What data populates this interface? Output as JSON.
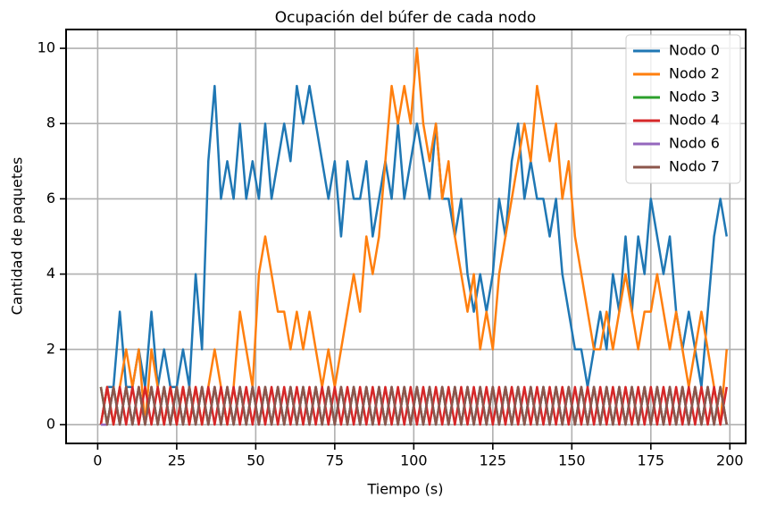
{
  "chart_data": {
    "type": "line",
    "title": "Ocupación del búfer de cada nodo",
    "x_label": "Tiempo (s)",
    "y_label": "Cantidad de paquetes",
    "xlim": [
      -10,
      205
    ],
    "xticks": [
      0,
      25,
      50,
      75,
      100,
      125,
      150,
      175,
      200
    ],
    "ylim": [
      -0.5,
      10.5
    ],
    "yticks": [
      0,
      2,
      4,
      6,
      8,
      10
    ],
    "grid": true,
    "legend": "upper right",
    "x": [
      1,
      3,
      5,
      7,
      9,
      11,
      13,
      15,
      17,
      19,
      21,
      23,
      25,
      27,
      29,
      31,
      33,
      35,
      37,
      39,
      41,
      43,
      45,
      47,
      49,
      51,
      53,
      55,
      57,
      59,
      61,
      63,
      65,
      67,
      69,
      71,
      73,
      75,
      77,
      79,
      81,
      83,
      85,
      87,
      89,
      91,
      93,
      95,
      97,
      99,
      101,
      103,
      105,
      107,
      109,
      111,
      113,
      115,
      117,
      119,
      121,
      123,
      125,
      127,
      129,
      131,
      133,
      135,
      137,
      139,
      141,
      143,
      145,
      147,
      149,
      151,
      153,
      155,
      157,
      159,
      161,
      163,
      165,
      167,
      169,
      171,
      173,
      175,
      177,
      179,
      181,
      183,
      185,
      187,
      189,
      191,
      193,
      195,
      197,
      199
    ],
    "series": [
      {
        "name": "Nodo 0",
        "color": "#1f77b4",
        "values": [
          0,
          1,
          1,
          3,
          1,
          1,
          2,
          1,
          3,
          1,
          2,
          1,
          1,
          2,
          1,
          4,
          2,
          7,
          9,
          6,
          7,
          6,
          8,
          6,
          7,
          6,
          8,
          6,
          7,
          8,
          7,
          9,
          8,
          9,
          8,
          7,
          6,
          7,
          5,
          7,
          6,
          6,
          7,
          5,
          6,
          7,
          6,
          8,
          6,
          7,
          8,
          7,
          6,
          8,
          6,
          6,
          5,
          6,
          4,
          3,
          4,
          3,
          4,
          6,
          5,
          7,
          8,
          6,
          7,
          6,
          6,
          5,
          6,
          4,
          3,
          2,
          2,
          1,
          2,
          3,
          2,
          4,
          3,
          5,
          3,
          5,
          4,
          6,
          5,
          4,
          5,
          3,
          2,
          3,
          2,
          1,
          3,
          5,
          6,
          5
        ]
      },
      {
        "name": "Nodo 2",
        "color": "#ff7f0e",
        "values": [
          0,
          1,
          0,
          1,
          2,
          1,
          2,
          0,
          2,
          1,
          0,
          1,
          0,
          1,
          0,
          1,
          0,
          1,
          2,
          1,
          0,
          1,
          3,
          2,
          1,
          4,
          5,
          4,
          3,
          3,
          2,
          3,
          2,
          3,
          2,
          1,
          2,
          1,
          2,
          3,
          4,
          3,
          5,
          4,
          5,
          7,
          9,
          8,
          9,
          8,
          10,
          8,
          7,
          8,
          6,
          7,
          5,
          4,
          3,
          4,
          2,
          3,
          2,
          4,
          5,
          6,
          7,
          8,
          7,
          9,
          8,
          7,
          8,
          6,
          7,
          5,
          4,
          3,
          2,
          2,
          3,
          2,
          3,
          4,
          3,
          2,
          3,
          3,
          4,
          3,
          2,
          3,
          2,
          1,
          2,
          3,
          2,
          1,
          0,
          2
        ]
      },
      {
        "name": "Nodo 3",
        "color": "#2ca02c",
        "values": [
          1,
          0,
          1,
          0,
          1,
          0,
          1,
          0,
          1,
          0,
          1,
          0,
          1,
          0,
          1,
          0,
          1,
          0,
          1,
          0,
          1,
          0,
          1,
          0,
          1,
          0,
          1,
          0,
          1,
          0,
          1,
          0,
          1,
          0,
          1,
          0,
          1,
          0,
          1,
          0,
          1,
          0,
          1,
          0,
          1,
          0,
          1,
          0,
          1,
          0,
          1,
          0,
          1,
          0,
          1,
          0,
          1,
          0,
          1,
          0,
          1,
          0,
          1,
          0,
          1,
          0,
          1,
          0,
          1,
          0,
          1,
          0,
          1,
          0,
          1,
          0,
          1,
          0,
          1,
          0,
          1,
          0,
          1,
          0,
          1,
          0,
          1,
          0,
          1,
          0,
          1,
          0,
          1,
          0,
          1,
          0,
          1,
          0,
          1,
          0
        ]
      },
      {
        "name": "Nodo 4",
        "color": "#d62728",
        "values": [
          0,
          1,
          0,
          1,
          0,
          1,
          0,
          1,
          0,
          1,
          0,
          1,
          0,
          1,
          0,
          1,
          0,
          1,
          0,
          1,
          0,
          1,
          0,
          1,
          0,
          1,
          0,
          1,
          0,
          1,
          0,
          1,
          0,
          1,
          0,
          1,
          0,
          1,
          0,
          1,
          0,
          1,
          0,
          1,
          0,
          1,
          0,
          1,
          0,
          1,
          0,
          1,
          0,
          1,
          0,
          1,
          0,
          1,
          0,
          1,
          0,
          1,
          0,
          1,
          0,
          1,
          0,
          1,
          0,
          1,
          0,
          1,
          0,
          1,
          0,
          1,
          0,
          1,
          0,
          1,
          0,
          1,
          0,
          1,
          0,
          1,
          0,
          1,
          0,
          1,
          0,
          1,
          0,
          1,
          0,
          1,
          0,
          1,
          0,
          1
        ]
      },
      {
        "name": "Nodo 6",
        "color": "#9467bd",
        "values": [
          0,
          0,
          1,
          0,
          1,
          0,
          1,
          0,
          1,
          0,
          1,
          0,
          1,
          0,
          1,
          0,
          1,
          0,
          1,
          0,
          1,
          0,
          1,
          0,
          1,
          0,
          1,
          0,
          1,
          0,
          1,
          0,
          1,
          0,
          1,
          0,
          1,
          0,
          1,
          0,
          1,
          0,
          1,
          0,
          1,
          0,
          1,
          0,
          1,
          0,
          1,
          0,
          1,
          0,
          1,
          0,
          1,
          0,
          1,
          0,
          1,
          0,
          1,
          0,
          1,
          0,
          1,
          0,
          1,
          0,
          1,
          0,
          1,
          0,
          1,
          0,
          1,
          0,
          1,
          0,
          1,
          0,
          1,
          0,
          1,
          0,
          1,
          0,
          1,
          0,
          1,
          0,
          1,
          0,
          1,
          0,
          1,
          0,
          1,
          0
        ]
      },
      {
        "name": "Nodo 7",
        "color": "#8c564b",
        "values": [
          1,
          0,
          1,
          0,
          1,
          0,
          1,
          0,
          1,
          0,
          1,
          0,
          1,
          0,
          1,
          0,
          1,
          0,
          1,
          0,
          1,
          0,
          1,
          0,
          1,
          0,
          1,
          0,
          1,
          0,
          1,
          0,
          1,
          0,
          1,
          0,
          1,
          0,
          1,
          0,
          1,
          0,
          1,
          0,
          1,
          0,
          1,
          0,
          1,
          0,
          1,
          0,
          1,
          0,
          1,
          0,
          1,
          0,
          1,
          0,
          1,
          0,
          1,
          0,
          1,
          0,
          1,
          0,
          1,
          0,
          1,
          0,
          1,
          0,
          1,
          0,
          1,
          0,
          1,
          0,
          1,
          0,
          1,
          0,
          1,
          0,
          1,
          0,
          1,
          0,
          1,
          0,
          1,
          0,
          1,
          0,
          1,
          0,
          1,
          0
        ]
      }
    ]
  }
}
